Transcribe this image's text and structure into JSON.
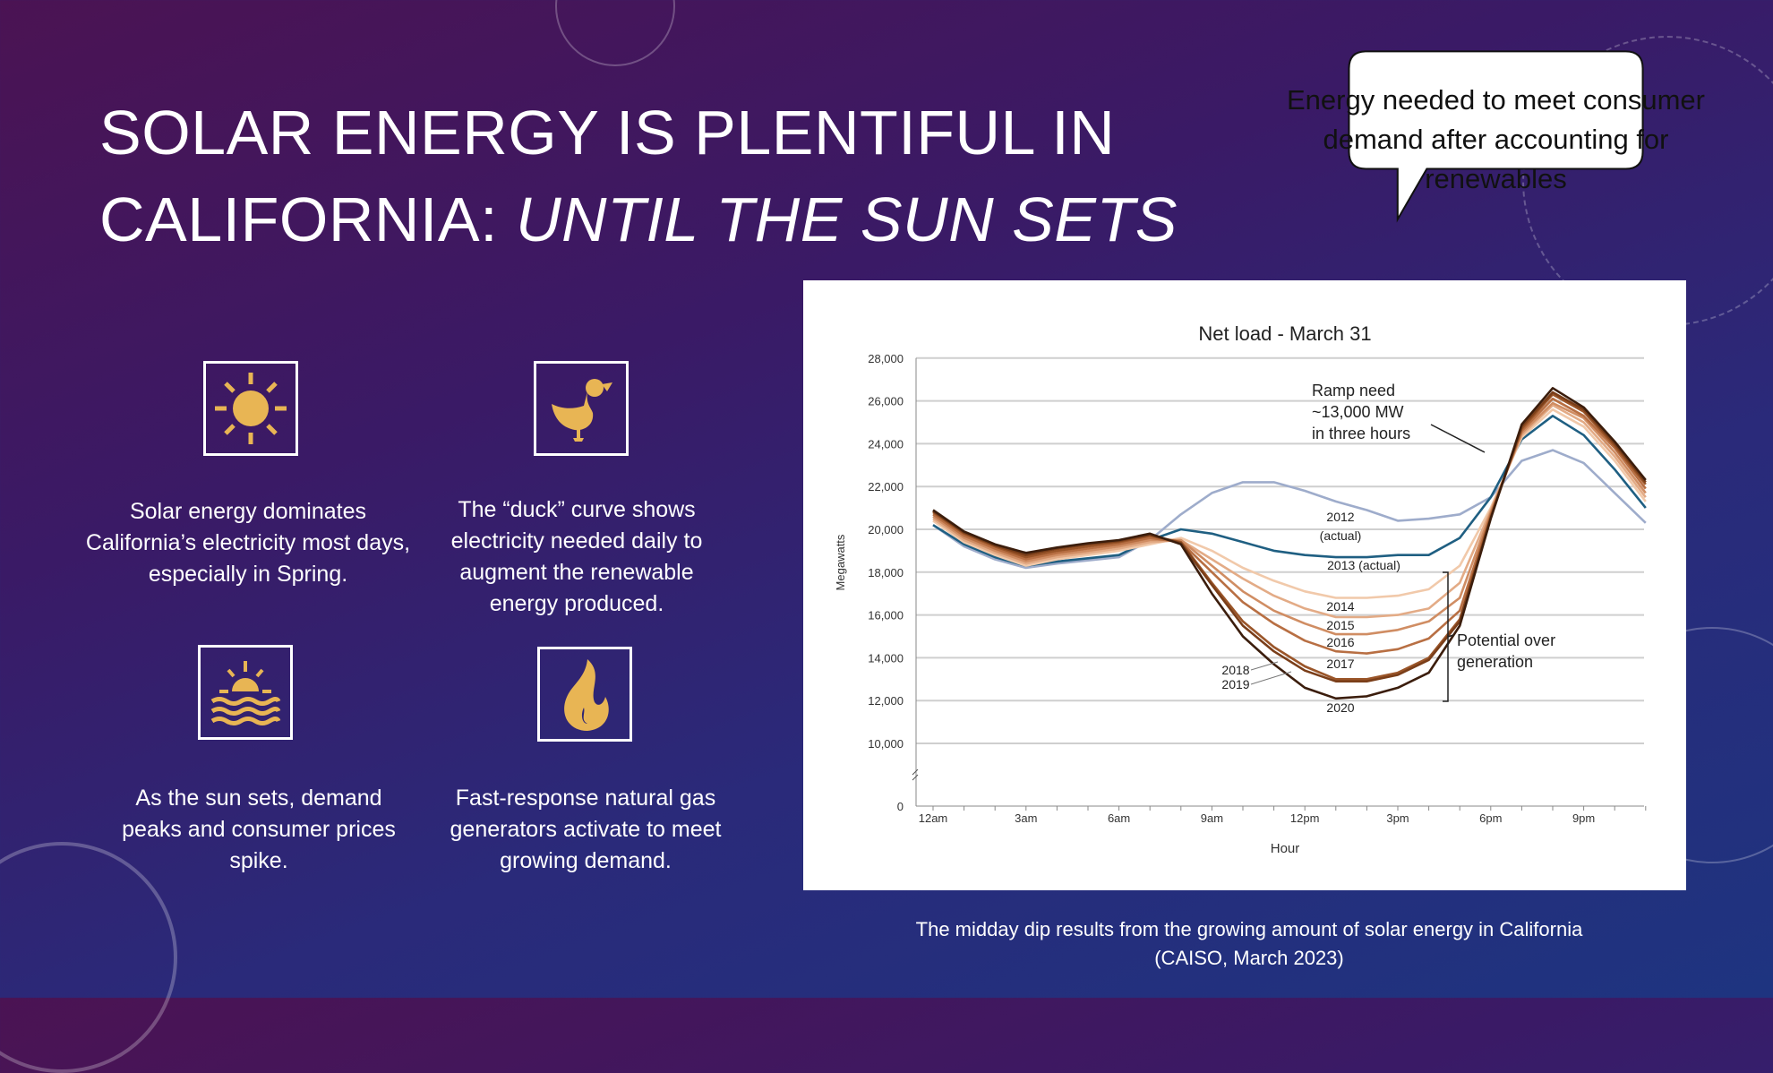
{
  "slide": {
    "title_line1": "SOLAR ENERGY IS PLENTIFUL IN",
    "title_line2_plain": "CALIFORNIA: ",
    "title_line2_italic": "UNTIL THE SUN SETS",
    "callout": "Energy needed to meet consumer demand after accounting for renewables",
    "caption_line1": "The midday dip results from the growing amount of solar energy in California",
    "caption_line2": "(CAISO, March 2023)",
    "icon_color": "#e8b554",
    "items": [
      {
        "icon": "sun-icon",
        "text": "Solar energy dominates California’s electricity most days, especially in Spring."
      },
      {
        "icon": "duck-icon",
        "text": "The “duck” curve shows electricity needed daily to augment the renewable energy produced."
      },
      {
        "icon": "sunset-icon",
        "text": "As the sun sets, demand peaks and consumer prices spike."
      },
      {
        "icon": "flame-icon",
        "text": "Fast-response natural gas generators activate to meet growing demand."
      }
    ]
  },
  "chart_data": {
    "type": "line",
    "title": "Net load - March 31",
    "xlabel": "Hour",
    "ylabel": "Megawatts",
    "ylim": [
      0,
      28000
    ],
    "y_break": [
      0,
      10000
    ],
    "grid": true,
    "y_ticks": [
      "28,000",
      "26,000",
      "24,000",
      "22,000",
      "20,000",
      "18,000",
      "16,000",
      "14,000",
      "12,000",
      "10,000",
      "0"
    ],
    "y_tick_values": [
      28000,
      26000,
      24000,
      22000,
      20000,
      18000,
      16000,
      14000,
      12000,
      10000,
      0
    ],
    "x_ticks": [
      "12am",
      "3am",
      "6am",
      "9am",
      "12pm",
      "3pm",
      "6pm",
      "9pm"
    ],
    "x_tick_hours": [
      0,
      3,
      6,
      9,
      12,
      15,
      18,
      21
    ],
    "x": [
      0,
      1,
      2,
      3,
      4,
      5,
      6,
      7,
      8,
      9,
      10,
      11,
      12,
      13,
      14,
      15,
      16,
      17,
      18,
      19,
      20,
      21,
      22,
      23
    ],
    "series": [
      {
        "name": "2012 (actual)",
        "color": "#9eaccb",
        "values": [
          20200,
          19200,
          18600,
          18200,
          18400,
          18550,
          18700,
          19500,
          20700,
          21700,
          22200,
          22200,
          21800,
          21300,
          20900,
          20400,
          20500,
          20700,
          21500,
          23200,
          23700,
          23100,
          21700,
          20300
        ]
      },
      {
        "name": "2013 (actual)",
        "color": "#1f5f82",
        "values": [
          20200,
          19300,
          18700,
          18300,
          18500,
          18650,
          18800,
          19500,
          20000,
          19800,
          19400,
          19000,
          18800,
          18700,
          18700,
          18800,
          18800,
          19600,
          21500,
          24200,
          25300,
          24400,
          22800,
          21000
        ]
      },
      {
        "name": "2014",
        "color": "#f1c9aa",
        "values": [
          20400,
          19400,
          18800,
          18300,
          18600,
          18800,
          19000,
          19300,
          19600,
          19000,
          18200,
          17600,
          17100,
          16800,
          16800,
          16900,
          17200,
          18300,
          21000,
          24300,
          25600,
          24800,
          23200,
          21300
        ]
      },
      {
        "name": "2015",
        "color": "#e3ab86",
        "values": [
          20500,
          19500,
          18900,
          18400,
          18700,
          18900,
          19100,
          19400,
          19500,
          18600,
          17700,
          16900,
          16300,
          15900,
          15900,
          16000,
          16300,
          17500,
          20900,
          24400,
          25800,
          25000,
          23400,
          21500
        ]
      },
      {
        "name": "2016",
        "color": "#d08d63",
        "values": [
          20600,
          19600,
          19000,
          18500,
          18800,
          19000,
          19200,
          19500,
          19500,
          18300,
          17100,
          16200,
          15600,
          15100,
          15100,
          15300,
          15700,
          16800,
          20800,
          24500,
          25900,
          25200,
          23600,
          21700
        ]
      },
      {
        "name": "2017",
        "color": "#b86f43",
        "values": [
          20700,
          19700,
          19100,
          18600,
          18900,
          19100,
          19300,
          19600,
          19400,
          18000,
          16600,
          15600,
          14800,
          14300,
          14200,
          14400,
          14900,
          16200,
          20700,
          24600,
          26100,
          25300,
          23800,
          21900
        ]
      },
      {
        "name": "2018",
        "color": "#9a5529",
        "values": [
          20800,
          19800,
          19200,
          18700,
          19000,
          19200,
          19400,
          19700,
          19400,
          17500,
          15700,
          14500,
          13600,
          13000,
          13000,
          13300,
          14000,
          15800,
          20600,
          24700,
          26300,
          25500,
          23900,
          22100
        ]
      },
      {
        "name": "2019",
        "color": "#7a3e19",
        "values": [
          20850,
          19850,
          19250,
          18800,
          19100,
          19300,
          19450,
          19750,
          19350,
          17400,
          15500,
          14300,
          13400,
          12900,
          12900,
          13200,
          13900,
          15700,
          20550,
          24800,
          26400,
          25600,
          24000,
          22200
        ]
      },
      {
        "name": "2020",
        "color": "#3b1d0c",
        "values": [
          20900,
          19900,
          19300,
          18900,
          19150,
          19350,
          19500,
          19800,
          19300,
          17000,
          15000,
          13700,
          12600,
          12100,
          12200,
          12600,
          13300,
          15500,
          20500,
          24900,
          26600,
          25700,
          24100,
          22300
        ]
      }
    ],
    "annotations": {
      "ramp_line1": "Ramp need",
      "ramp_line2": "~13,000 MW",
      "ramp_line3": "in three hours",
      "label_2012": "2012",
      "label_2012_sub": "(actual)",
      "label_2013": "2013 (actual)",
      "label_2014": "2014",
      "label_2015": "2015",
      "label_2016": "2016",
      "label_2017": "2017",
      "label_2018": "2018",
      "label_2019": "2019",
      "label_2020": "2020",
      "overgen_line1": "Potential over",
      "overgen_line2": "generation"
    }
  }
}
